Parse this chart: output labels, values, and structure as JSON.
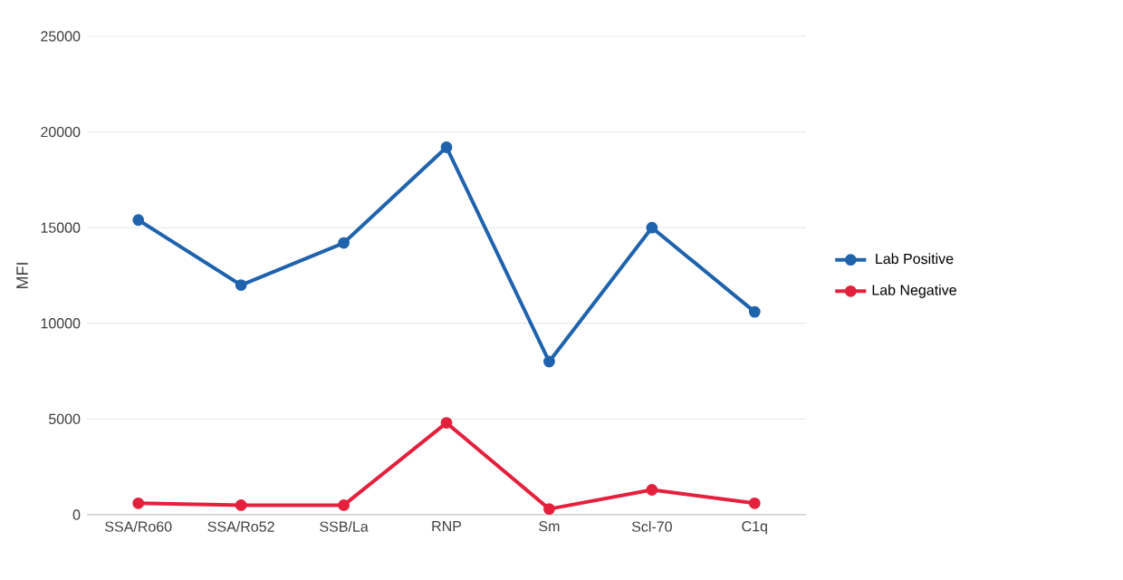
{
  "chart_data": {
    "type": "line",
    "ylabel": "MFI",
    "categories": [
      "SSA/Ro60",
      "SSA/Ro52",
      "SSB/La",
      "RNP",
      "Sm",
      "Scl-70",
      "C1q"
    ],
    "series": [
      {
        "name": "Lab Positive",
        "color": "#1f63ad",
        "values": [
          15400,
          12000,
          14200,
          19200,
          8000,
          15000,
          10600
        ]
      },
      {
        "name": "Lab Negative",
        "color": "#e4203d",
        "values": [
          600,
          500,
          500,
          4800,
          300,
          1300,
          600
        ]
      }
    ],
    "ylim": [
      0,
      25000
    ],
    "yticks": [
      0,
      5000,
      10000,
      15000,
      20000,
      25000
    ],
    "grid": "y",
    "legend": "right",
    "marker": "circle"
  }
}
